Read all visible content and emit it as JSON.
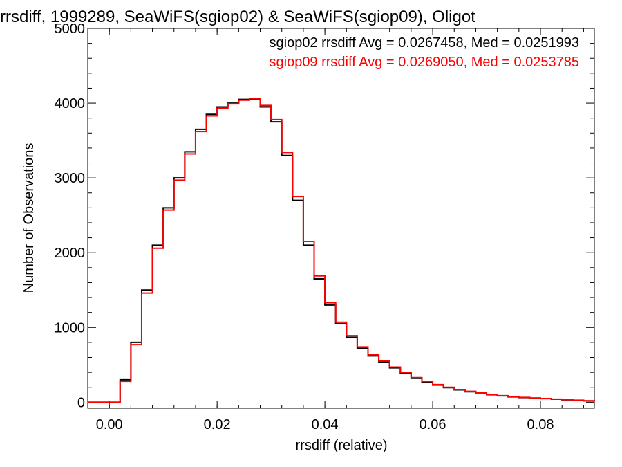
{
  "chart_data": {
    "type": "line",
    "title": "rrsdiff, 1999289, SeaWiFS(sgiop02) & SeaWiFS(sgiop09), Oligot",
    "xlabel": "rrsdiff (relative)",
    "ylabel": "Number of Observations",
    "xlim": [
      -0.004,
      0.09
    ],
    "ylim": [
      -80,
      5000
    ],
    "x_ticks": [
      0.0,
      0.02,
      0.04,
      0.06,
      0.08
    ],
    "x_tick_labels": [
      "0.00",
      "0.02",
      "0.04",
      "0.06",
      "0.08"
    ],
    "y_ticks": [
      0,
      1000,
      2000,
      3000,
      4000,
      5000
    ],
    "y_tick_labels": [
      "0",
      "1000",
      "2000",
      "3000",
      "4000",
      "5000"
    ],
    "grid": false,
    "legend_position": "top-right",
    "series": [
      {
        "name": "sgiop02 rrsdiff Avg = 0.0267458, Med = 0.0251993",
        "color": "#000000",
        "x": [
          -0.004,
          0.0,
          0.002,
          0.004,
          0.006,
          0.008,
          0.01,
          0.012,
          0.014,
          0.016,
          0.018,
          0.02,
          0.022,
          0.024,
          0.026,
          0.028,
          0.03,
          0.032,
          0.034,
          0.036,
          0.038,
          0.04,
          0.042,
          0.044,
          0.046,
          0.048,
          0.05,
          0.052,
          0.054,
          0.056,
          0.058,
          0.06,
          0.062,
          0.064,
          0.066,
          0.068,
          0.07,
          0.072,
          0.074,
          0.076,
          0.078,
          0.08,
          0.082,
          0.084,
          0.086,
          0.088,
          0.09
        ],
        "y": [
          0,
          0,
          300,
          800,
          1500,
          2100,
          2600,
          3000,
          3350,
          3650,
          3850,
          3950,
          4000,
          4050,
          4050,
          3950,
          3750,
          3300,
          2700,
          2100,
          1650,
          1300,
          1050,
          870,
          720,
          620,
          540,
          460,
          390,
          320,
          270,
          230,
          195,
          165,
          140,
          120,
          100,
          85,
          72,
          62,
          55,
          48,
          40,
          32,
          25,
          18,
          12
        ]
      },
      {
        "name": "sgiop09 rrsdiff Avg = 0.0269050, Med = 0.0253785",
        "color": "#ff0000",
        "x": [
          -0.004,
          0.0,
          0.002,
          0.004,
          0.006,
          0.008,
          0.01,
          0.012,
          0.014,
          0.016,
          0.018,
          0.02,
          0.022,
          0.024,
          0.026,
          0.028,
          0.03,
          0.032,
          0.034,
          0.036,
          0.038,
          0.04,
          0.042,
          0.044,
          0.046,
          0.048,
          0.05,
          0.052,
          0.054,
          0.056,
          0.058,
          0.06,
          0.062,
          0.064,
          0.066,
          0.068,
          0.07,
          0.072,
          0.074,
          0.076,
          0.078,
          0.08,
          0.082,
          0.084,
          0.086,
          0.088,
          0.09
        ],
        "y": [
          0,
          0,
          280,
          770,
          1460,
          2060,
          2570,
          2970,
          3320,
          3620,
          3830,
          3930,
          3990,
          4040,
          4060,
          3970,
          3780,
          3340,
          2750,
          2150,
          1690,
          1330,
          1070,
          890,
          740,
          635,
          550,
          470,
          400,
          330,
          278,
          236,
          200,
          170,
          145,
          124,
          104,
          88,
          75,
          65,
          57,
          50,
          42,
          34,
          27,
          20,
          14
        ]
      }
    ]
  }
}
